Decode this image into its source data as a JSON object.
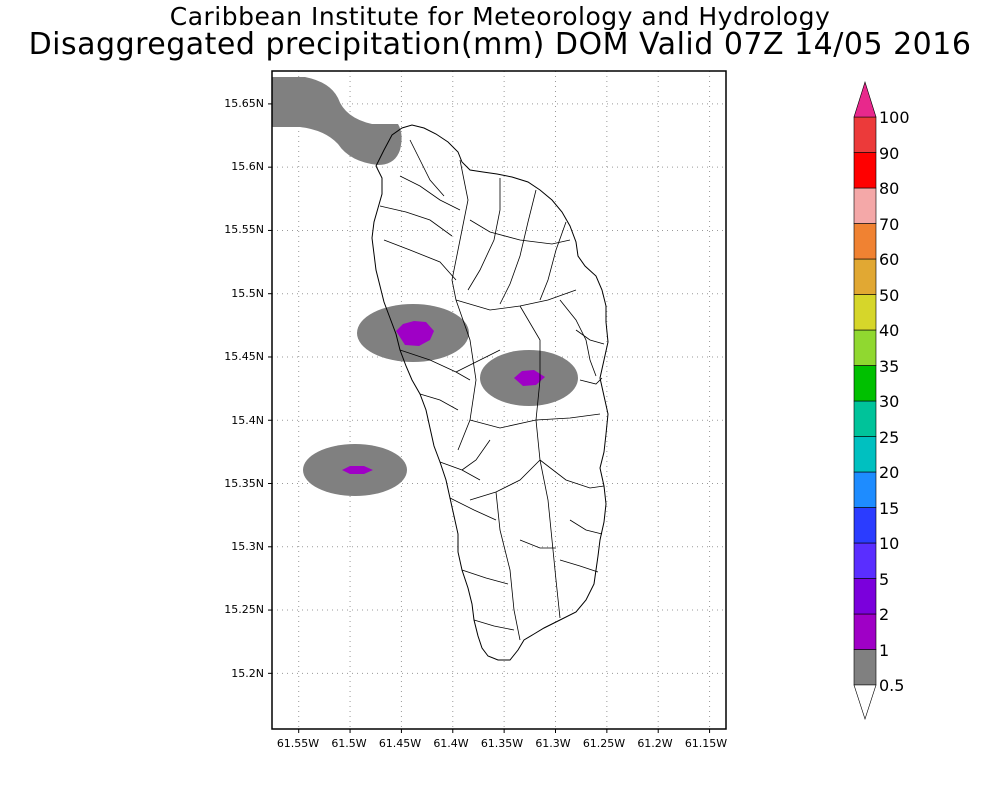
{
  "header": {
    "line1": "Caribbean Institute for Meteorology and Hydrology",
    "line2": "Disaggregated precipitation(mm) DOM Valid 07Z 14/05 2016"
  },
  "map": {
    "lat_ticks": [
      "15.65N",
      "15.6N",
      "15.55N",
      "15.5N",
      "15.45N",
      "15.4N",
      "15.35N",
      "15.3N",
      "15.25N",
      "15.2N"
    ],
    "lon_ticks": [
      "61.55W",
      "61.5W",
      "61.45W",
      "61.4W",
      "61.35W",
      "61.3W",
      "61.25W",
      "61.2W",
      "61.15W"
    ],
    "lat_values": [
      15.65,
      15.6,
      15.55,
      15.5,
      15.45,
      15.4,
      15.35,
      15.3,
      15.25,
      15.2
    ],
    "lon_values": [
      -61.55,
      -61.5,
      -61.45,
      -61.4,
      -61.35,
      -61.3,
      -61.25,
      -61.2,
      -61.15
    ],
    "lon_range": [
      -61.576,
      -61.134
    ],
    "lat_range": [
      15.156,
      15.676
    ],
    "grid": true,
    "precip_areas": [
      {
        "name": "northwest-coast-band",
        "category": "0.5-1"
      },
      {
        "name": "west-central-cell",
        "center": [
          -61.434,
          15.469
        ],
        "category": "0.5-1",
        "core": "1-2"
      },
      {
        "name": "east-central-cell",
        "center": [
          -61.32,
          15.432
        ],
        "category": "0.5-1",
        "core": "1-2"
      },
      {
        "name": "offshore-west-cell",
        "center": [
          -61.494,
          15.36
        ],
        "category": "0.5-1",
        "core": "1-2"
      }
    ]
  },
  "colorbar": {
    "labels": [
      "0.5",
      "1",
      "2",
      "5",
      "10",
      "15",
      "20",
      "25",
      "30",
      "35",
      "40",
      "50",
      "60",
      "70",
      "80",
      "90",
      "100"
    ],
    "colors": [
      "#808080",
      "#9f00c6",
      "#7b00dc",
      "#5a2eff",
      "#2b3cff",
      "#1e8cff",
      "#00c0c0",
      "#00c39a",
      "#00c000",
      "#90d830",
      "#d6d62a",
      "#e1a833",
      "#f08232",
      "#f4a8a8",
      "#ff0000",
      "#ec3a3a"
    ],
    "under_color": "#ffffff",
    "over_color": "#e8288c"
  }
}
